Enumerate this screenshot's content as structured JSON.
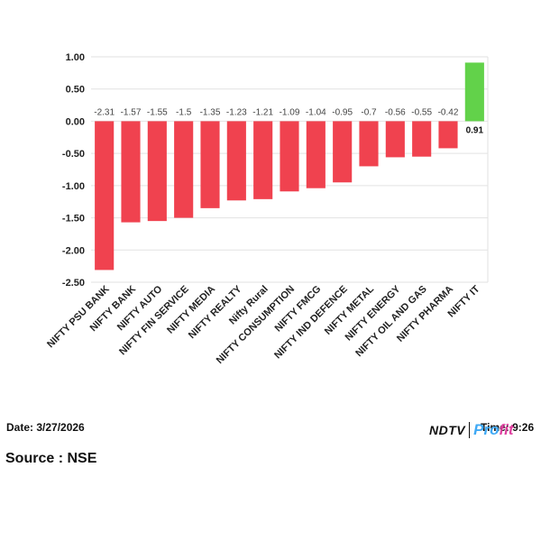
{
  "chart_data": {
    "type": "bar",
    "categories": [
      "NIFTY PSU BANK",
      "NIFTY BANK",
      "NIFTY AUTO",
      "NIFTY FIN SERVICE",
      "NIFTY MEDIA",
      "NIFTY REALTY",
      "Nifty Rural",
      "NIFTY CONSUMPTION",
      "NIFTY FMCG",
      "NIFTY IND DEFENCE",
      "NIFTY METAL",
      "NIFTY ENERGY",
      "NIFTY OIL AND GAS",
      "NIFTY PHARMA",
      "NIFTY IT"
    ],
    "values": [
      -2.31,
      -1.57,
      -1.55,
      -1.5,
      -1.35,
      -1.23,
      -1.21,
      -1.09,
      -1.04,
      -0.95,
      -0.7,
      -0.56,
      -0.55,
      -0.42,
      0.91
    ],
    "data_labels": [
      "-2.31",
      "-1.57",
      "-1.55",
      "-1.5",
      "-1.35",
      "-1.23",
      "-1.21",
      "-1.09",
      "-1.04",
      "-0.95",
      "-0.7",
      "-0.56",
      "-0.55",
      "-0.42",
      "0.91"
    ],
    "yticks": [
      "1.00",
      "0.50",
      "0.00",
      "-0.50",
      "-1.00",
      "-1.50",
      "-2.00",
      "-2.50"
    ],
    "ylim": [
      -2.5,
      1.0
    ],
    "grid": true,
    "colors": {
      "negative": "#f0424f",
      "positive": "#62d24a"
    }
  },
  "footer": {
    "date": "Date: 3/27/2026",
    "source": "Source : NSE",
    "time": "Time: 9:26",
    "brand_ndtv": "NDTV",
    "brand_profit_a": "Pro",
    "brand_profit_b": "fit"
  }
}
